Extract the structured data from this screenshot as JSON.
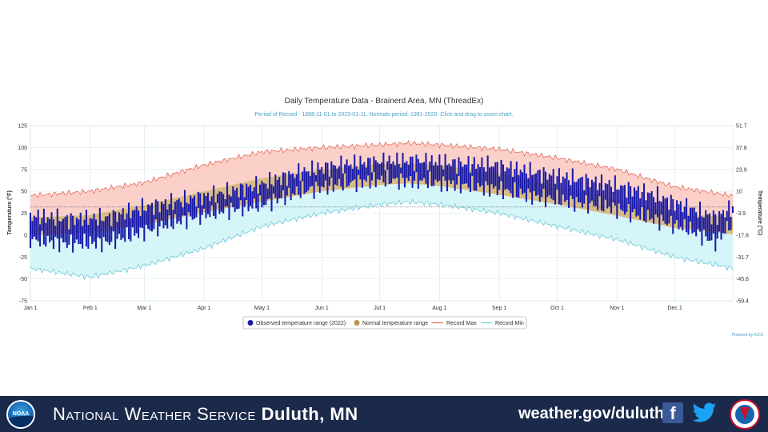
{
  "chart_data": {
    "type": "bar",
    "title": "Daily Temperature Data - Brainerd Area, MN (ThreadEx)",
    "subtitle": "Period of Record - 1898-11-01 to 2023-01-11. Normals period: 1991-2020. Click and drag to zoom chart.",
    "ylabel": "Temperature (°F)",
    "ylabel_right": "Temperature (°C)",
    "ylim": [
      -75,
      125
    ],
    "y_ticks": [
      "125",
      "100",
      "75",
      "50",
      "25",
      "0",
      "-25",
      "-50",
      "-75"
    ],
    "y_ticks_right": [
      "51.7",
      "37.8",
      "23.9",
      "10",
      "-3.9",
      "-17.8",
      "-31.7",
      "-45.6",
      "-59.4"
    ],
    "x_month_labels": [
      "Jan 1",
      "Feb 1",
      "Mar 1",
      "Apr 1",
      "May 1",
      "Jun 1",
      "Jul 1",
      "Aug 1",
      "Sep 1",
      "Oct 1",
      "Nov 1",
      "Dec 1"
    ],
    "x_month_start_days": [
      0,
      31,
      59,
      90,
      120,
      151,
      181,
      212,
      243,
      273,
      304,
      334
    ],
    "days_in_year": 365,
    "grid": true,
    "legend_placement": "bottom-center",
    "credit": "Powered by ACIS",
    "series": [
      {
        "name": "Observed temperature range (2022)",
        "color": "#1a1aa8",
        "anchor_days": [
          0,
          20,
          40,
          60,
          80,
          100,
          120,
          140,
          160,
          180,
          200,
          220,
          240,
          260,
          280,
          300,
          320,
          340,
          355,
          364
        ],
        "high_anchor": [
          22,
          18,
          20,
          32,
          40,
          48,
          58,
          72,
          80,
          84,
          85,
          82,
          80,
          72,
          65,
          58,
          48,
          32,
          20,
          32
        ],
        "low_anchor": [
          -5,
          -10,
          -8,
          5,
          18,
          28,
          35,
          50,
          58,
          63,
          62,
          58,
          53,
          45,
          38,
          32,
          20,
          8,
          -8,
          15
        ]
      },
      {
        "name": "Normal temperature range",
        "color": "#b8954a",
        "anchor_days": [
          0,
          31,
          59,
          90,
          120,
          151,
          181,
          196,
          212,
          243,
          273,
          304,
          334,
          364
        ],
        "high_anchor": [
          20,
          23,
          34,
          50,
          65,
          75,
          81,
          82,
          80,
          70,
          57,
          40,
          25,
          20
        ],
        "low_anchor": [
          0,
          2,
          12,
          26,
          38,
          50,
          57,
          59,
          56,
          46,
          35,
          22,
          8,
          1
        ]
      },
      {
        "name": "Record Max",
        "color": "#e86a5a",
        "anchor_days": [
          0,
          31,
          59,
          90,
          120,
          151,
          181,
          196,
          212,
          243,
          273,
          304,
          334,
          364
        ],
        "values_anchor": [
          45,
          50,
          60,
          80,
          95,
          100,
          103,
          105,
          103,
          98,
          88,
          75,
          55,
          45
        ]
      },
      {
        "name": "Record Min",
        "color": "#6cc8d8",
        "anchor_days": [
          0,
          31,
          59,
          90,
          120,
          151,
          181,
          196,
          212,
          243,
          273,
          304,
          334,
          364
        ],
        "values_anchor": [
          -38,
          -48,
          -35,
          -15,
          10,
          25,
          35,
          38,
          35,
          25,
          10,
          -5,
          -25,
          -38
        ]
      }
    ],
    "reference_line_value": 32
  },
  "banner": {
    "agency_prefix": "National Weather Service",
    "office": "Duluth, MN",
    "url": "weather.gov/duluth",
    "noaa_logo_text": "NOAA",
    "colors": {
      "background": "#1b2a4a",
      "text": "#ffffff",
      "facebook": "#3b5998",
      "twitter": "#1da1f2",
      "nws_red": "#c8102e"
    }
  }
}
